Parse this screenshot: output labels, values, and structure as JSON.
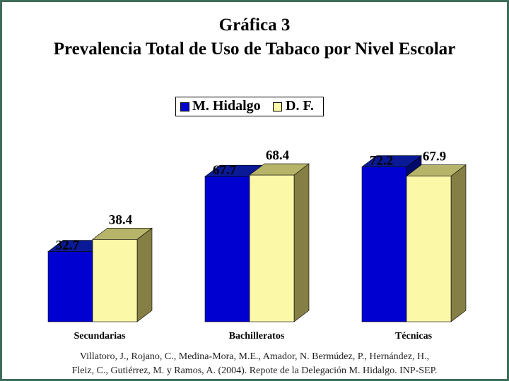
{
  "title": "Gráfica 3",
  "subtitle": "Prevalencia Total de Uso de Tabaco por Nivel Escolar",
  "source_line1": "Villatoro, J., Rojano, C., Medina-Mora, M.E., Amador, N. Bermúdez, P., Hernández, H.,",
  "source_line2": "Fleiz, C., Gutiérrez, M. y Ramos, A. (2004). Repote de la Delegación M. Hidalgo. INP-SEP.",
  "chart_data": {
    "type": "bar",
    "style": "3d-grouped",
    "title": "Gráfica 3",
    "subtitle": "Prevalencia Total de Uso de Tabaco por Nivel Escolar",
    "categories": [
      "Secundarias",
      "Bachilleratos",
      "Técnicas"
    ],
    "series": [
      {
        "name": "M. Hidalgo",
        "values": [
          32.7,
          67.7,
          72.2
        ],
        "color": "#0000d0",
        "top_color": "#0a1a96",
        "side_color": "#000a6a"
      },
      {
        "name": "D. F.",
        "values": [
          38.4,
          68.4,
          67.9
        ],
        "color": "#fbf8a8",
        "top_color": "#b6b468",
        "side_color": "#857f45"
      }
    ],
    "ylim": [
      0,
      80
    ],
    "legend": "top-center",
    "grid": false,
    "xlabel": "",
    "ylabel": ""
  }
}
